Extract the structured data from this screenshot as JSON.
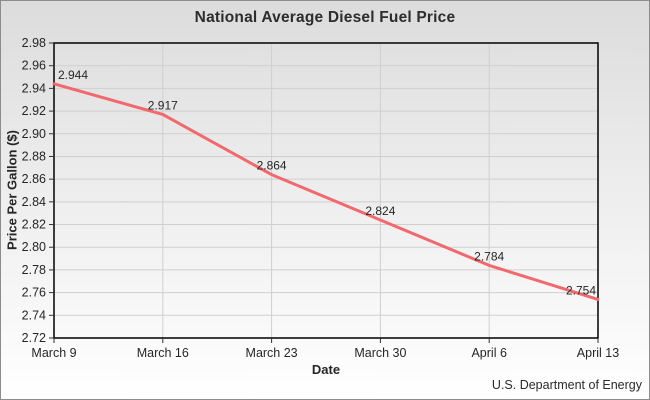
{
  "page": {
    "footer": "U.S. Department of Energy"
  },
  "chart_data": {
    "type": "line",
    "title": "National Average Diesel Fuel Price",
    "xlabel": "Date",
    "ylabel": "Price Per Gallon ($)",
    "categories": [
      "March 9",
      "March 16",
      "March 23",
      "March 30",
      "April 6",
      "April 13"
    ],
    "values": [
      2.944,
      2.917,
      2.864,
      2.824,
      2.784,
      2.754
    ],
    "point_labels": [
      "2.944",
      "2.917",
      "2.864",
      "2.824",
      "2.784",
      "2.754"
    ],
    "ylim": [
      2.72,
      2.98
    ],
    "ytick_step": 0.02,
    "ytick_decimals": 2,
    "grid": true,
    "legend": "none",
    "colors": {
      "line": "#f0696e",
      "grid": "#cfcfcf",
      "axis_border": "#000000",
      "tick": "#333333",
      "text": "#262626"
    }
  }
}
